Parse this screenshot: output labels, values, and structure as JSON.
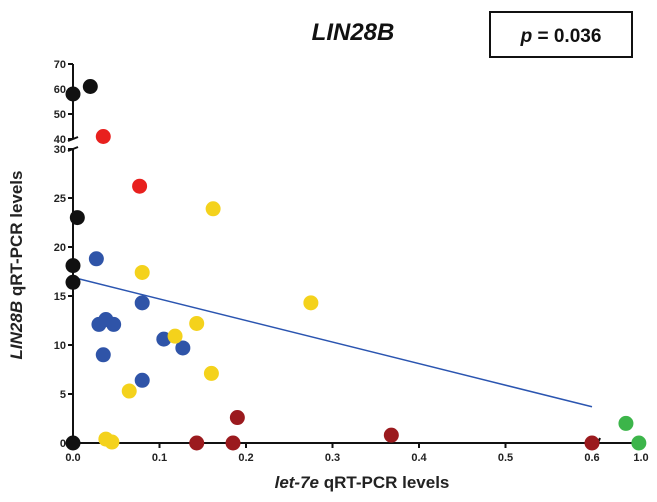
{
  "chart_data": {
    "type": "scatter",
    "title": "LIN28B",
    "annotation": {
      "p_label": "p",
      "p_rest": " = 0.036"
    },
    "xlabel": {
      "italic": "let-7e",
      "rest": " qRT-PCR levels"
    },
    "ylabel": {
      "italic": "LIN28B",
      "rest": " qRT-PCR levels"
    },
    "x_axis": {
      "segments": [
        [
          0.0,
          0.6
        ],
        [
          0.9,
          1.0
        ]
      ],
      "ticks": [
        "0.0",
        "0.1",
        "0.2",
        "0.3",
        "0.4",
        "0.5",
        "0.6",
        "1.0"
      ]
    },
    "y_axis": {
      "segments": [
        [
          0,
          30
        ],
        [
          40,
          70
        ]
      ],
      "ticks": [
        "0",
        "5",
        "10",
        "15",
        "20",
        "25",
        "30",
        "40",
        "50",
        "60",
        "70"
      ]
    },
    "grid": false,
    "regression_line": {
      "x": [
        0.0,
        0.6
      ],
      "y": [
        16.9,
        3.7
      ],
      "color": "#2b55b0"
    },
    "colors": {
      "black": "#111111",
      "red": "#e8201e",
      "blue": "#2f54a8",
      "yellow": "#f4d21c",
      "darkred": "#9b1a1e",
      "green": "#3cb54a"
    },
    "series": [
      {
        "color_key": "black",
        "points": [
          [
            0.0,
            58
          ],
          [
            0.02,
            61
          ],
          [
            0.005,
            23
          ],
          [
            0.0,
            18.1
          ],
          [
            0.0,
            16.4
          ],
          [
            0.0,
            0
          ]
        ]
      },
      {
        "color_key": "red",
        "points": [
          [
            0.035,
            41
          ],
          [
            0.077,
            26.2
          ]
        ]
      },
      {
        "color_key": "blue",
        "points": [
          [
            0.027,
            18.8
          ],
          [
            0.03,
            12.1
          ],
          [
            0.038,
            12.6
          ],
          [
            0.047,
            12.1
          ],
          [
            0.035,
            9.0
          ],
          [
            0.08,
            14.3
          ],
          [
            0.105,
            10.6
          ],
          [
            0.127,
            9.7
          ],
          [
            0.08,
            6.4
          ]
        ]
      },
      {
        "color_key": "yellow",
        "points": [
          [
            0.08,
            17.4
          ],
          [
            0.162,
            23.9
          ],
          [
            0.275,
            14.3
          ],
          [
            0.143,
            12.2
          ],
          [
            0.118,
            10.9
          ],
          [
            0.16,
            7.1
          ],
          [
            0.065,
            5.3
          ],
          [
            0.038,
            0.4
          ],
          [
            0.045,
            0.1
          ]
        ]
      },
      {
        "color_key": "darkred",
        "points": [
          [
            0.19,
            2.6
          ],
          [
            0.368,
            0.8
          ],
          [
            0.143,
            0
          ],
          [
            0.185,
            0
          ],
          [
            0.6,
            0
          ]
        ]
      },
      {
        "color_key": "green",
        "points": [
          [
            0.965,
            2.0
          ],
          [
            0.995,
            0
          ]
        ]
      }
    ]
  }
}
